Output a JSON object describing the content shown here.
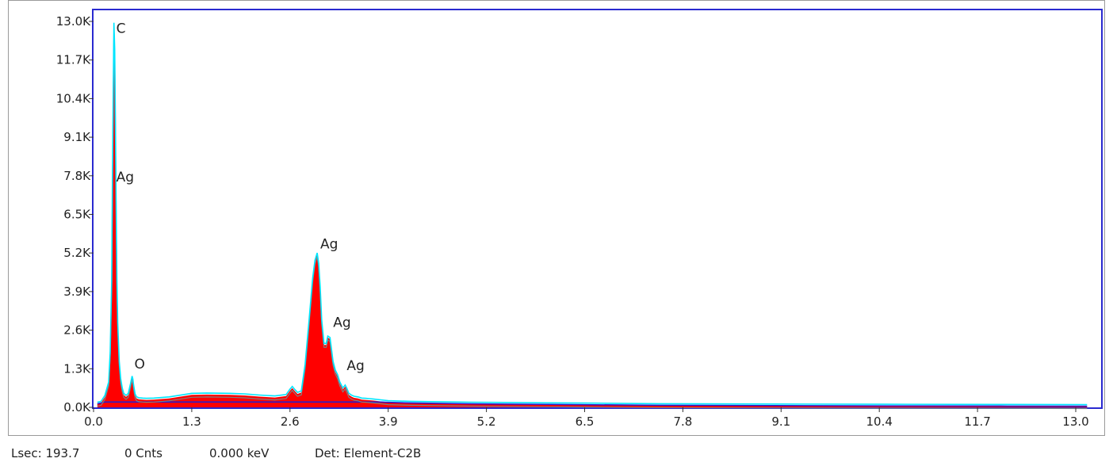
{
  "chart_data": {
    "type": "area",
    "title": "",
    "xlabel": "",
    "ylabel": "",
    "xlim": [
      0.0,
      13.15
    ],
    "ylim": [
      0,
      13000
    ],
    "x_ticks": [
      "0.0",
      "1.3",
      "2.6",
      "3.9",
      "5.2",
      "6.5",
      "7.8",
      "9.1",
      "10.4",
      "11.7",
      "13.0"
    ],
    "x_tick_values": [
      0.0,
      1.3,
      2.6,
      3.9,
      5.2,
      6.5,
      7.8,
      9.1,
      10.4,
      11.7,
      13.0
    ],
    "y_ticks": [
      "0.0K",
      "1.3K",
      "2.6K",
      "3.9K",
      "5.2K",
      "6.5K",
      "7.8K",
      "9.1K",
      "10.4K",
      "11.7K",
      "13.0K"
    ],
    "y_tick_values": [
      0,
      1300,
      2600,
      3900,
      5200,
      6500,
      7800,
      9100,
      10400,
      11700,
      13000
    ],
    "colors": {
      "fill": "#ff0000",
      "outline": "#00e5ff",
      "fit": "#808080",
      "background": "#1e1ed2",
      "frame": "#2a2ad0"
    },
    "spectrum": {
      "x": [
        0.05,
        0.1,
        0.15,
        0.2,
        0.22,
        0.24,
        0.25,
        0.26,
        0.27,
        0.28,
        0.29,
        0.3,
        0.31,
        0.32,
        0.34,
        0.36,
        0.38,
        0.4,
        0.43,
        0.46,
        0.49,
        0.51,
        0.52,
        0.53,
        0.55,
        0.57,
        0.6,
        0.65,
        0.7,
        0.8,
        1.0,
        1.2,
        1.3,
        1.5,
        1.8,
        2.0,
        2.2,
        2.4,
        2.55,
        2.6,
        2.63,
        2.66,
        2.7,
        2.75,
        2.8,
        2.85,
        2.9,
        2.93,
        2.96,
        2.98,
        3.0,
        3.02,
        3.05,
        3.08,
        3.1,
        3.13,
        3.15,
        3.17,
        3.2,
        3.23,
        3.26,
        3.3,
        3.33,
        3.35,
        3.38,
        3.42,
        3.45,
        3.5,
        3.55,
        3.6,
        3.65,
        3.7,
        3.8,
        3.9,
        4.2,
        5.0,
        6.0,
        6.5,
        7.5,
        9.0,
        10.5,
        12.0,
        13.15
      ],
      "y": [
        120,
        150,
        350,
        800,
        1800,
        4200,
        7500,
        10500,
        12900,
        12000,
        9500,
        6500,
        4200,
        2800,
        1500,
        900,
        600,
        420,
        350,
        420,
        750,
        1000,
        900,
        700,
        400,
        300,
        270,
        260,
        250,
        260,
        300,
        380,
        420,
        430,
        420,
        400,
        360,
        330,
        380,
        560,
        650,
        560,
        450,
        500,
        1400,
        2800,
        4300,
        4900,
        5150,
        4800,
        4000,
        2900,
        2100,
        2100,
        2350,
        2300,
        1900,
        1500,
        1200,
        1050,
        800,
        600,
        700,
        600,
        420,
        350,
        320,
        300,
        260,
        250,
        240,
        230,
        200,
        170,
        150,
        120,
        100,
        90,
        70,
        60,
        50,
        45,
        40
      ]
    },
    "peak_labels": [
      {
        "text": "C",
        "x": 0.28,
        "y": 12500
      },
      {
        "text": "Ag",
        "x": 0.28,
        "y": 7500
      },
      {
        "text": "O",
        "x": 0.52,
        "y": 1200
      },
      {
        "text": "Ag",
        "x": 2.98,
        "y": 5250
      },
      {
        "text": "Ag",
        "x": 3.15,
        "y": 2600
      },
      {
        "text": "Ag",
        "x": 3.33,
        "y": 1150
      }
    ]
  },
  "status_bar": {
    "lsec": "Lsec: 193.7",
    "counts": "0 Cnts",
    "energy": "0.000 keV",
    "detector": "Det: Element-C2B"
  }
}
